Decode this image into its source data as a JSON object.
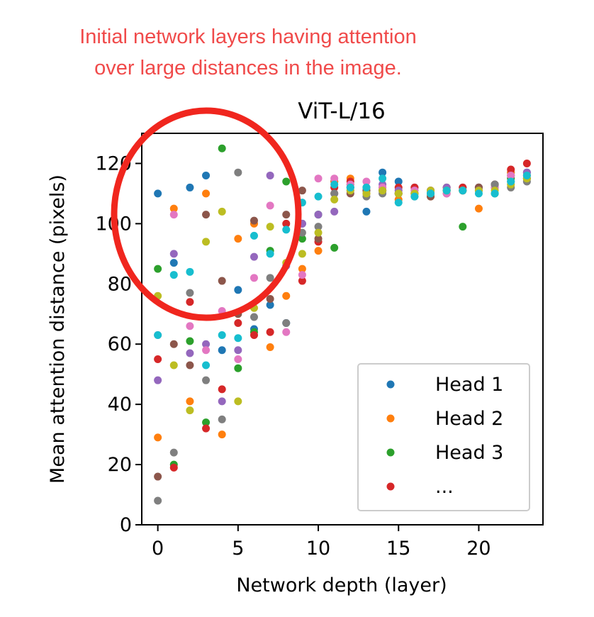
{
  "annotation": {
    "lines": [
      "Initial network layers having attention",
      "over large distances in the image."
    ],
    "color": "#f04a4a",
    "circle_color": "#f0261e"
  },
  "chart_data": {
    "type": "scatter",
    "title": "ViT-L/16",
    "xlabel": "Network depth (layer)",
    "ylabel": "Mean attention distance (pixels)",
    "xlim": [
      -1,
      24
    ],
    "ylim": [
      0,
      130
    ],
    "xticks": [
      0,
      5,
      10,
      15,
      20
    ],
    "yticks": [
      0,
      20,
      40,
      60,
      80,
      100,
      120
    ],
    "grid": false,
    "legend_position": "bottom-right",
    "legend": [
      "Head 1",
      "Head 2",
      "Head 3",
      "..."
    ],
    "colors": [
      "#1f77b4",
      "#ff7f0e",
      "#2ca02c",
      "#d62728",
      "#9467bd",
      "#8c564b",
      "#e377c2",
      "#7f7f7f",
      "#bcbd22",
      "#17becf"
    ],
    "series": [
      {
        "name": "Head 1",
        "values": [
          110,
          87,
          112,
          116,
          58,
          78,
          65,
          73,
          67,
          100,
          103,
          114,
          112,
          104,
          117,
          114,
          112,
          111,
          112,
          112,
          112,
          113,
          117,
          117
        ]
      },
      {
        "name": "Head 2",
        "values": [
          29,
          105,
          41,
          110,
          30,
          95,
          100,
          59,
          76,
          85,
          91,
          114,
          115,
          110,
          112,
          108,
          110,
          109,
          112,
          111,
          105,
          112,
          117,
          116
        ]
      },
      {
        "name": "Head 3",
        "values": [
          85,
          20,
          61,
          34,
          125,
          52,
          64,
          91,
          114,
          95,
          103,
          92,
          113,
          111,
          111,
          110,
          110,
          110,
          111,
          99,
          112,
          110,
          115,
          115
        ]
      },
      {
        "name": "",
        "values": [
          55,
          19,
          74,
          32,
          45,
          67,
          63,
          64,
          100,
          81,
          94,
          112,
          114,
          112,
          111,
          112,
          112,
          111,
          111,
          112,
          112,
          113,
          118,
          120
        ]
      },
      {
        "name": "",
        "values": [
          48,
          90,
          57,
          60,
          41,
          58,
          89,
          116,
          86,
          100,
          103,
          104,
          111,
          112,
          113,
          111,
          111,
          111,
          112,
          111,
          112,
          112,
          114,
          117
        ]
      },
      {
        "name": "",
        "values": [
          16,
          60,
          53,
          103,
          81,
          70,
          101,
          75,
          103,
          111,
          95,
          110,
          110,
          111,
          111,
          110,
          110,
          109,
          110,
          111,
          112,
          113,
          116,
          115
        ]
      },
      {
        "name": "",
        "values": [
          63,
          103,
          66,
          58,
          71,
          55,
          82,
          106,
          64,
          83,
          115,
          115,
          113,
          114,
          112,
          110,
          111,
          111,
          110,
          111,
          111,
          112,
          116,
          116
        ]
      },
      {
        "name": "",
        "values": [
          8,
          24,
          77,
          48,
          35,
          117,
          69,
          82,
          67,
          97,
          99,
          110,
          112,
          109,
          110,
          110,
          109,
          110,
          111,
          111,
          111,
          113,
          112,
          114
        ]
      },
      {
        "name": "",
        "values": [
          76,
          53,
          38,
          94,
          104,
          41,
          72,
          99,
          87,
          90,
          97,
          108,
          111,
          110,
          111,
          110,
          110,
          111,
          111,
          111,
          111,
          111,
          113,
          115
        ]
      },
      {
        "name": "",
        "values": [
          63,
          83,
          84,
          53,
          63,
          62,
          96,
          90,
          98,
          107,
          109,
          113,
          112,
          112,
          115,
          107,
          109,
          110,
          111,
          111,
          110,
          110,
          114,
          116
        ]
      }
    ]
  }
}
